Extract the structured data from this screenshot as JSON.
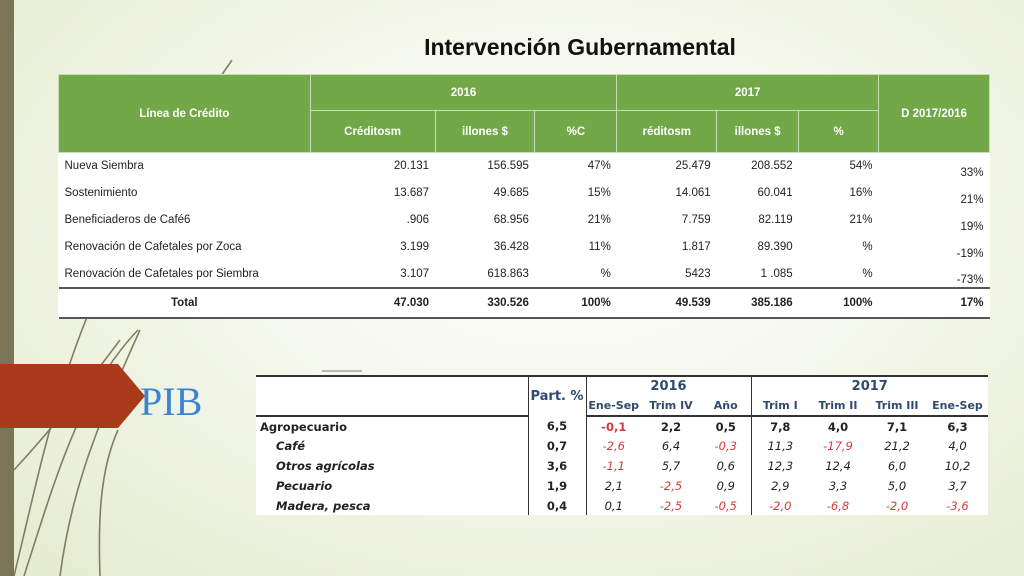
{
  "slide": {
    "title": "Intervención Gubernamental",
    "pib_label": "PIB",
    "accent_color": "#a93a1a",
    "table_header_color": "#72a848"
  },
  "credit_table": {
    "header_row1": {
      "line": "Línea de Crédito",
      "y2016": "2016",
      "y2017": "2017",
      "diff": "D 2017/2016"
    },
    "header_row2": [
      "Créditosm",
      "illones $",
      "%C",
      "réditosm",
      "illones $",
      "%"
    ],
    "rows": [
      {
        "label": "Nueva Siembra",
        "c2016": "20.131",
        "m2016": "156.595",
        "p2016": "47%",
        "c2017": "25.479",
        "m2017": "208.552",
        "p2017": "54%",
        "diff": "33%"
      },
      {
        "label": "Sostenimiento",
        "c2016": "13.687",
        "m2016": "49.685",
        "p2016": "15%",
        "c2017": "14.061",
        "m2017": "60.041",
        "p2017": "16%",
        "diff": "21%"
      },
      {
        "label": "Beneficiaderos de Café6",
        "c2016": ".906",
        "m2016": "68.956",
        "p2016": "21%",
        "c2017": "7.759",
        "m2017": "82.119",
        "p2017": "21%",
        "diff": "19%"
      },
      {
        "label": "Renovación de Cafetales por Zoca",
        "c2016": "3.199",
        "m2016": "36.428",
        "p2016": "11%",
        "c2017": "1.817",
        "m2017": "89.390",
        "p2017": "%",
        "diff": "-19%"
      },
      {
        "label": "Renovación de Cafetales por Siembra",
        "c2016": "3.107",
        "m2016": "618.863",
        "p2016": "%",
        "c2017": "5423",
        "m2017": "1 .085",
        "p2017": "%",
        "diff": "-73%"
      }
    ],
    "total": {
      "label": "Total",
      "c2016": "47.030",
      "m2016": "330.526",
      "p2016": "100%",
      "c2017": "49.539",
      "m2017": "385.186",
      "p2017": "100%",
      "diff": "17%"
    }
  },
  "pib_table": {
    "part_header": "Part. %",
    "year2016": "2016",
    "year2017": "2017",
    "sub2016": [
      "Ene-Sep",
      "Trim IV",
      "Año"
    ],
    "sub2017": [
      "Trim I",
      "Trim II",
      "Trim III",
      "Ene-Sep"
    ],
    "rows": [
      {
        "label": "Agropecuario",
        "part": "6,5",
        "v": [
          "-0,1",
          "2,2",
          "0,5",
          "7,8",
          "4,0",
          "7,1",
          "6,3"
        ],
        "neg": [
          true,
          false,
          false,
          false,
          false,
          false,
          false
        ],
        "main": true
      },
      {
        "label": "Café",
        "part": "0,7",
        "v": [
          "-2,6",
          "6,4",
          "-0,3",
          "11,3",
          "-17,9",
          "21,2",
          "4,0"
        ],
        "neg": [
          true,
          false,
          true,
          false,
          true,
          false,
          false
        ],
        "main": false
      },
      {
        "label": "Otros agrícolas",
        "part": "3,6",
        "v": [
          "-1,1",
          "5,7",
          "0,6",
          "12,3",
          "12,4",
          "6,0",
          "10,2"
        ],
        "neg": [
          true,
          false,
          false,
          false,
          false,
          false,
          false
        ],
        "main": false
      },
      {
        "label": "Pecuario",
        "part": "1,9",
        "v": [
          "2,1",
          "-2,5",
          "0,9",
          "2,9",
          "3,3",
          "5,0",
          "3,7"
        ],
        "neg": [
          false,
          true,
          false,
          false,
          false,
          false,
          false
        ],
        "main": false
      },
      {
        "label": "Madera, pesca",
        "part": "0,4",
        "v": [
          "0,1",
          "-2,5",
          "-0,5",
          "-2,0",
          "-6,8",
          "-2,0",
          "-3,6"
        ],
        "neg": [
          false,
          true,
          true,
          true,
          true,
          true,
          true
        ],
        "main": false
      }
    ]
  }
}
